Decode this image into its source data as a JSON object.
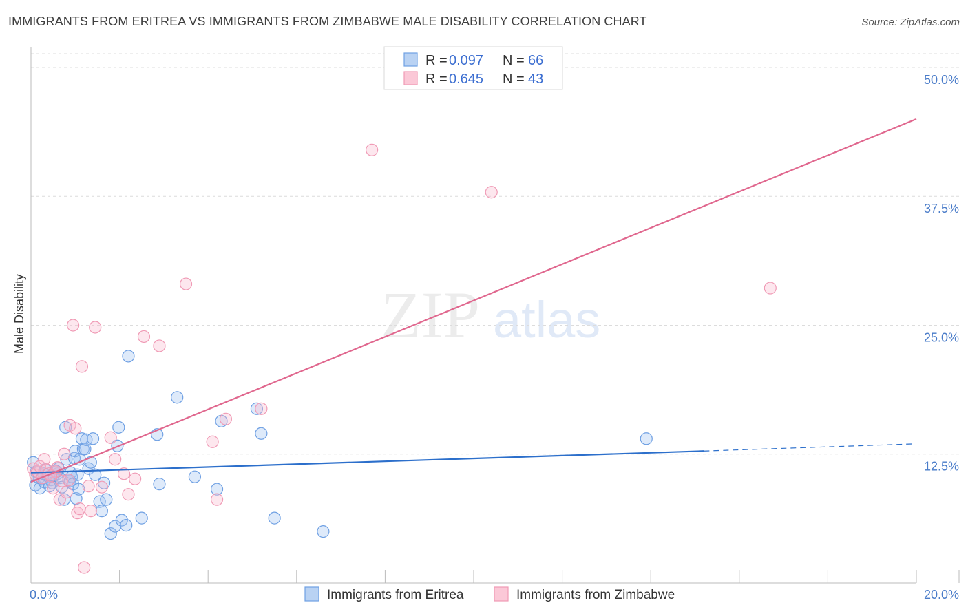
{
  "title": "IMMIGRANTS FROM ERITREA VS IMMIGRANTS FROM ZIMBABWE MALE DISABILITY CORRELATION CHART",
  "source": "Source: ZipAtlas.com",
  "chart_data": {
    "type": "scatter",
    "ylabel": "Male Disability",
    "xlim": [
      0,
      20
    ],
    "ylim": [
      0,
      52
    ],
    "x_tick_labels": [
      {
        "value": 0,
        "label": "0.0%"
      },
      {
        "value": 20,
        "label": "20.0%"
      }
    ],
    "y_tick_labels": [
      {
        "value": 12.5,
        "label": "12.5%"
      },
      {
        "value": 25,
        "label": "25.0%"
      },
      {
        "value": 37.5,
        "label": "37.5%"
      },
      {
        "value": 50,
        "label": "50.0%"
      }
    ],
    "legend": [
      {
        "series": "Immigrants from Eritrea",
        "r_label": "R =",
        "r_value": "0.097",
        "n_label": "N =",
        "n_value": "66"
      },
      {
        "series": "Immigrants from Zimbabwe",
        "r_label": "R =",
        "r_value": "0.645",
        "n_label": "N =",
        "n_value": "43"
      }
    ],
    "series": [
      {
        "name": "Immigrants from Eritrea",
        "color": "#6fa0e3",
        "line_color": "#2c6fcb",
        "trend": {
          "x0": 0,
          "y0": 10.7,
          "x1": 15.2,
          "y1": 12.8,
          "dash_x1": 20,
          "dash_y1": 13.5
        },
        "points": [
          [
            0.05,
            11.7
          ],
          [
            0.1,
            9.5
          ],
          [
            0.12,
            10.8
          ],
          [
            0.18,
            10.2
          ],
          [
            0.2,
            9.2
          ],
          [
            0.25,
            10.1
          ],
          [
            0.3,
            9.8
          ],
          [
            0.32,
            11.0
          ],
          [
            0.35,
            10.5
          ],
          [
            0.4,
            10.3
          ],
          [
            0.45,
            10.0
          ],
          [
            0.48,
            9.7
          ],
          [
            0.5,
            10.4
          ],
          [
            0.55,
            10.9
          ],
          [
            0.6,
            10.6
          ],
          [
            0.62,
            11.1
          ],
          [
            0.65,
            10.2
          ],
          [
            0.7,
            9.3
          ],
          [
            0.75,
            8.1
          ],
          [
            0.78,
            15.1
          ],
          [
            0.8,
            12.0
          ],
          [
            0.85,
            10.0
          ],
          [
            0.88,
            9.9
          ],
          [
            0.9,
            10.7
          ],
          [
            0.92,
            10.3
          ],
          [
            0.95,
            9.6
          ],
          [
            0.98,
            12.1
          ],
          [
            1.0,
            12.8
          ],
          [
            1.02,
            8.2
          ],
          [
            1.05,
            10.5
          ],
          [
            1.08,
            9.1
          ],
          [
            1.1,
            12.0
          ],
          [
            1.15,
            14.0
          ],
          [
            1.18,
            13.0
          ],
          [
            1.22,
            13.0
          ],
          [
            1.25,
            13.9
          ],
          [
            1.3,
            11.1
          ],
          [
            1.35,
            11.7
          ],
          [
            1.4,
            14.0
          ],
          [
            1.45,
            10.5
          ],
          [
            1.55,
            7.9
          ],
          [
            1.6,
            7.0
          ],
          [
            1.65,
            9.7
          ],
          [
            1.7,
            8.1
          ],
          [
            1.8,
            4.8
          ],
          [
            1.9,
            5.5
          ],
          [
            1.95,
            13.3
          ],
          [
            1.98,
            15.1
          ],
          [
            2.05,
            6.1
          ],
          [
            2.15,
            5.6
          ],
          [
            2.2,
            22.0
          ],
          [
            2.5,
            6.3
          ],
          [
            2.85,
            14.4
          ],
          [
            2.9,
            9.6
          ],
          [
            3.3,
            18.0
          ],
          [
            3.7,
            10.3
          ],
          [
            4.2,
            9.1
          ],
          [
            4.3,
            15.7
          ],
          [
            5.1,
            16.9
          ],
          [
            5.2,
            14.5
          ],
          [
            5.5,
            6.3
          ],
          [
            6.6,
            5.0
          ],
          [
            13.9,
            14.0
          ],
          [
            0.28,
            10.6
          ],
          [
            0.42,
            9.4
          ],
          [
            0.58,
            10.8
          ]
        ]
      },
      {
        "name": "Immigrants from Zimbabwe",
        "color": "#f09ab5",
        "line_color": "#e0678e",
        "trend": {
          "x0": 0,
          "y0": 9.8,
          "x1": 20,
          "y1": 45.0
        },
        "points": [
          [
            0.05,
            11.1
          ],
          [
            0.1,
            10.5
          ],
          [
            0.15,
            10.8
          ],
          [
            0.2,
            11.3
          ],
          [
            0.25,
            10.2
          ],
          [
            0.3,
            12.0
          ],
          [
            0.35,
            11.0
          ],
          [
            0.4,
            10.6
          ],
          [
            0.5,
            9.2
          ],
          [
            0.55,
            10.8
          ],
          [
            0.6,
            11.2
          ],
          [
            0.65,
            8.1
          ],
          [
            0.7,
            9.9
          ],
          [
            0.75,
            12.5
          ],
          [
            0.8,
            8.8
          ],
          [
            0.85,
            10.0
          ],
          [
            0.88,
            15.3
          ],
          [
            0.95,
            25.0
          ],
          [
            1.0,
            15.0
          ],
          [
            1.05,
            6.8
          ],
          [
            1.1,
            7.2
          ],
          [
            1.15,
            21.0
          ],
          [
            1.2,
            1.5
          ],
          [
            1.3,
            9.4
          ],
          [
            1.35,
            7.0
          ],
          [
            1.45,
            24.8
          ],
          [
            1.6,
            9.3
          ],
          [
            1.8,
            14.1
          ],
          [
            1.9,
            12.0
          ],
          [
            2.1,
            10.6
          ],
          [
            2.2,
            8.6
          ],
          [
            2.35,
            10.1
          ],
          [
            2.55,
            23.9
          ],
          [
            2.9,
            23.0
          ],
          [
            3.5,
            29.0
          ],
          [
            4.1,
            13.7
          ],
          [
            4.2,
            8.1
          ],
          [
            4.4,
            15.9
          ],
          [
            5.2,
            16.9
          ],
          [
            7.7,
            42.0
          ],
          [
            10.4,
            37.9
          ],
          [
            16.7,
            28.6
          ],
          [
            0.45,
            10.4
          ]
        ]
      }
    ],
    "watermark": "ZIPatlas"
  }
}
